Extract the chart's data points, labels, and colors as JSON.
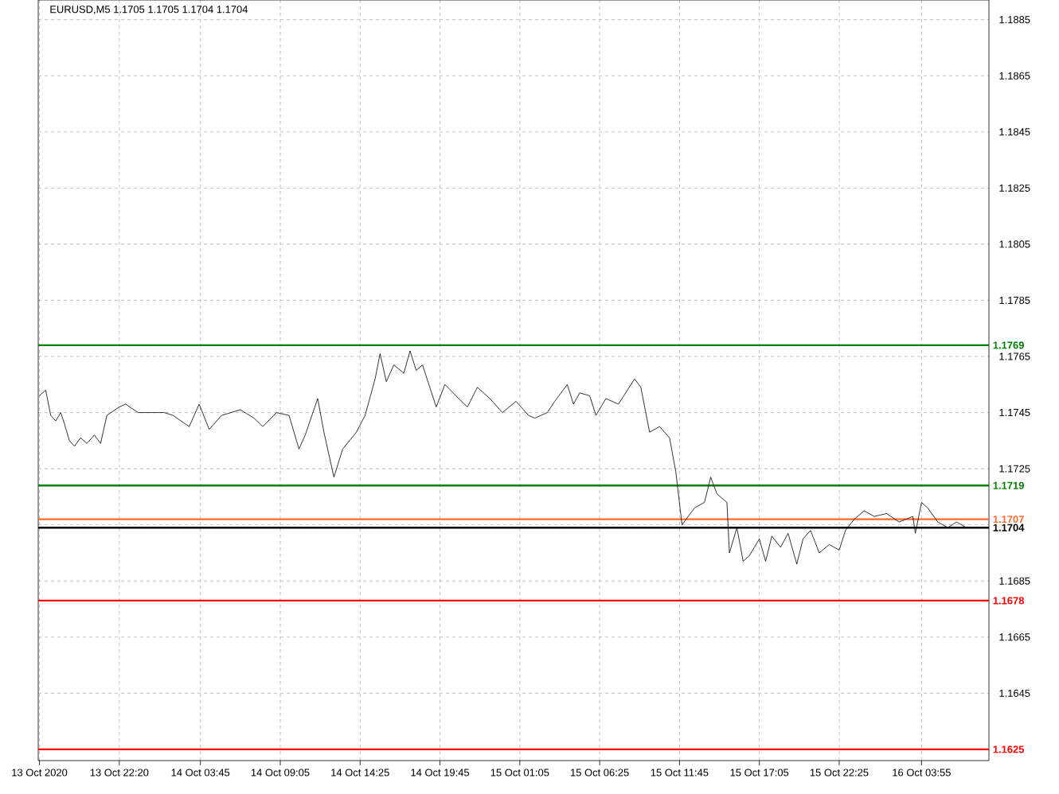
{
  "chart_data": {
    "type": "line",
    "title": "EURUSD,M5  1.1705 1.1705 1.1704 1.1704",
    "x": [
      "2020-10-13T17:00",
      "2020-10-13T17:25",
      "2020-10-13T17:45",
      "2020-10-13T18:05",
      "2020-10-13T18:25",
      "2020-10-13T18:40",
      "2020-10-13T19:00",
      "2020-10-13T19:20",
      "2020-10-13T19:45",
      "2020-10-13T20:10",
      "2020-10-13T20:40",
      "2020-10-13T21:05",
      "2020-10-13T21:30",
      "2020-10-13T22:20",
      "2020-10-13T22:45",
      "2020-10-13T23:35",
      "2020-10-14T01:20",
      "2020-10-14T01:55",
      "2020-10-14T03:00",
      "2020-10-14T03:40",
      "2020-10-14T04:20",
      "2020-10-14T05:10",
      "2020-10-14T06:25",
      "2020-10-14T07:20",
      "2020-10-14T07:55",
      "2020-10-14T08:50",
      "2020-10-14T09:40",
      "2020-10-14T10:20",
      "2020-10-14T10:45",
      "2020-10-14T11:35",
      "2020-10-14T12:00",
      "2020-10-14T12:40",
      "2020-10-14T13:15",
      "2020-10-14T14:10",
      "2020-10-14T14:45",
      "2020-10-14T15:25",
      "2020-10-14T15:45",
      "2020-10-14T16:10",
      "2020-10-14T16:40",
      "2020-10-14T17:20",
      "2020-10-14T17:45",
      "2020-10-14T18:10",
      "2020-10-14T18:35",
      "2020-10-14T19:30",
      "2020-10-14T20:05",
      "2020-10-14T21:00",
      "2020-10-14T21:35",
      "2020-10-14T22:15",
      "2020-10-14T23:05",
      "2020-10-14T23:55",
      "2020-10-15T00:50",
      "2020-10-15T01:40",
      "2020-10-15T02:05",
      "2020-10-15T02:55",
      "2020-10-15T03:25",
      "2020-10-15T04:15",
      "2020-10-15T04:40",
      "2020-10-15T05:05",
      "2020-10-15T05:45",
      "2020-10-15T06:10",
      "2020-10-15T06:50",
      "2020-10-15T07:40",
      "2020-10-15T08:45",
      "2020-10-15T09:10",
      "2020-10-15T09:45",
      "2020-10-15T10:25",
      "2020-10-15T11:05",
      "2020-10-15T11:30",
      "2020-10-15T11:55",
      "2020-10-15T12:45",
      "2020-10-15T13:25",
      "2020-10-15T13:50",
      "2020-10-15T14:15",
      "2020-10-15T14:55",
      "2020-10-15T15:05",
      "2020-10-15T15:35",
      "2020-10-15T16:00",
      "2020-10-15T16:25",
      "2020-10-15T17:05",
      "2020-10-15T17:30",
      "2020-10-15T17:55",
      "2020-10-15T18:30",
      "2020-10-15T19:00",
      "2020-10-15T19:35",
      "2020-10-15T20:00",
      "2020-10-15T20:30",
      "2020-10-15T21:05",
      "2020-10-15T21:45",
      "2020-10-15T22:25",
      "2020-10-15T22:50",
      "2020-10-15T23:25",
      "2020-10-16T00:05",
      "2020-10-16T00:45",
      "2020-10-16T01:35",
      "2020-10-16T02:25",
      "2020-10-16T03:20",
      "2020-10-16T03:30",
      "2020-10-16T03:55",
      "2020-10-16T04:20",
      "2020-10-16T05:00",
      "2020-10-16T05:40",
      "2020-10-16T06:15",
      "2020-10-16T06:55",
      "2020-10-16T07:20"
    ],
    "values": [
      1.1751,
      1.1753,
      1.1744,
      1.1742,
      1.1745,
      1.1741,
      1.1735,
      1.1733,
      1.1736,
      1.1734,
      1.1737,
      1.1734,
      1.1744,
      1.1747,
      1.1748,
      1.1745,
      1.1745,
      1.1744,
      1.174,
      1.1748,
      1.1739,
      1.1744,
      1.1746,
      1.1743,
      1.174,
      1.1745,
      1.1744,
      1.1732,
      1.1737,
      1.175,
      1.1738,
      1.1722,
      1.1732,
      1.1738,
      1.1744,
      1.1757,
      1.1766,
      1.1756,
      1.1762,
      1.1759,
      1.1767,
      1.176,
      1.1762,
      1.1747,
      1.1755,
      1.175,
      1.1747,
      1.1754,
      1.175,
      1.1745,
      1.1749,
      1.1744,
      1.1743,
      1.1745,
      1.1749,
      1.1755,
      1.1748,
      1.1752,
      1.1751,
      1.1744,
      1.175,
      1.1748,
      1.1757,
      1.1754,
      1.1738,
      1.174,
      1.1736,
      1.1724,
      1.1705,
      1.1711,
      1.1713,
      1.1722,
      1.1716,
      1.1713,
      1.1695,
      1.1704,
      1.1692,
      1.1694,
      1.17,
      1.1692,
      1.1701,
      1.1697,
      1.1702,
      1.1691,
      1.17,
      1.1703,
      1.1695,
      1.1698,
      1.1696,
      1.1703,
      1.1707,
      1.171,
      1.1708,
      1.1709,
      1.1706,
      1.1708,
      1.1702,
      1.1713,
      1.1711,
      1.1706,
      1.1704,
      1.1706,
      1.1704,
      1.1704
    ],
    "color": "#000000",
    "xlim": [
      "2020-10-13T16:55",
      "2020-10-16T08:25"
    ],
    "xticks": [
      {
        "value": "2020-10-13T17:00",
        "label": "13 Oct 2020"
      },
      {
        "value": "2020-10-13T22:20",
        "label": "13 Oct 22:20"
      },
      {
        "value": "2020-10-14T03:45",
        "label": "14 Oct 03:45"
      },
      {
        "value": "2020-10-14T09:05",
        "label": "14 Oct 09:05"
      },
      {
        "value": "2020-10-14T14:25",
        "label": "14 Oct 14:25"
      },
      {
        "value": "2020-10-14T19:45",
        "label": "14 Oct 19:45"
      },
      {
        "value": "2020-10-15T01:05",
        "label": "15 Oct 01:05"
      },
      {
        "value": "2020-10-15T06:25",
        "label": "15 Oct 06:25"
      },
      {
        "value": "2020-10-15T11:45",
        "label": "15 Oct 11:45"
      },
      {
        "value": "2020-10-15T17:05",
        "label": "15 Oct 17:05"
      },
      {
        "value": "2020-10-15T22:25",
        "label": "15 Oct 22:25"
      },
      {
        "value": "2020-10-16T03:55",
        "label": "16 Oct 03:55"
      }
    ],
    "ylim": [
      1.1621,
      1.1892
    ],
    "yticks": [
      1.1885,
      1.1865,
      1.1845,
      1.1825,
      1.1805,
      1.1785,
      1.1765,
      1.1745,
      1.1725,
      {
        "value": 1.1705,
        "label": null
      },
      1.1685,
      1.1665,
      1.1645,
      {
        "value": 1.1625,
        "label": null
      }
    ],
    "ref_lines": [
      {
        "axis": "y",
        "value": 1.1769,
        "label": "1.1769",
        "color": "#008000"
      },
      {
        "axis": "y",
        "value": 1.1719,
        "label": "1.1719",
        "color": "#008000"
      },
      {
        "axis": "y",
        "value": 1.1707,
        "label": "1.1707",
        "color": "#ff6a30"
      },
      {
        "axis": "y",
        "value": 1.1704,
        "label": "1.1704",
        "color": "#000000"
      },
      {
        "axis": "y",
        "value": 1.1678,
        "label": "1.1678",
        "color": "#ff0000"
      },
      {
        "axis": "y",
        "value": 1.1625,
        "label": "1.1625",
        "color": "#ff0000"
      }
    ],
    "grid": true,
    "legend": false,
    "marker": "none"
  }
}
